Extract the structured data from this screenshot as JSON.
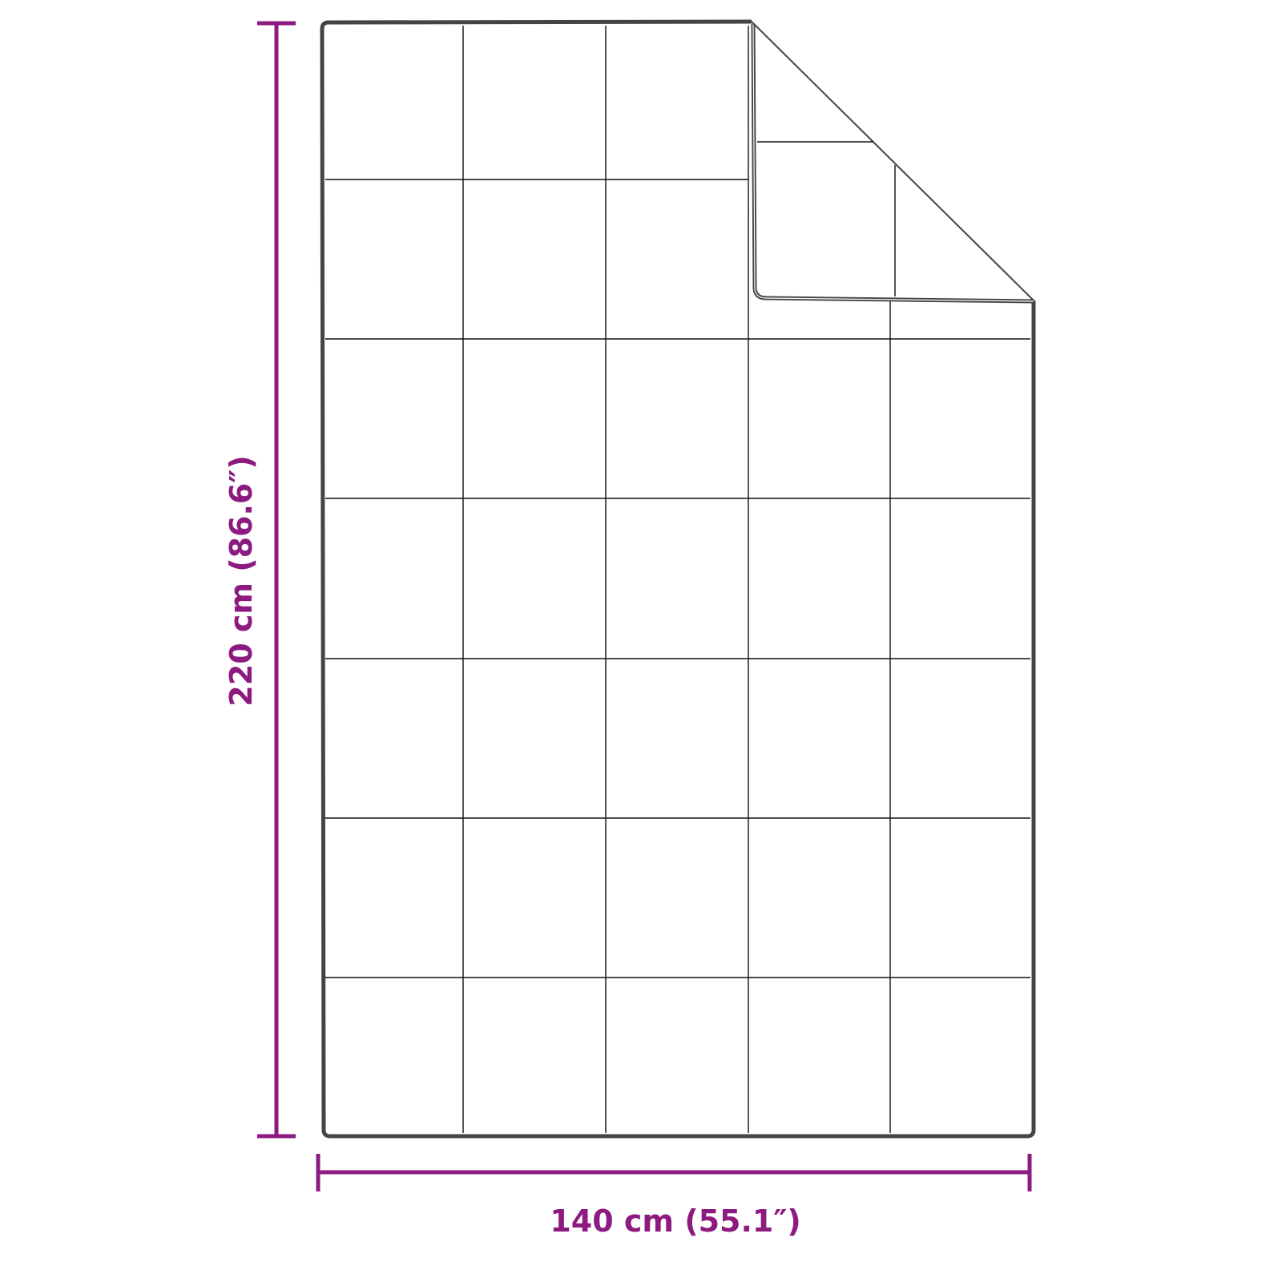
{
  "dimensions": {
    "height_label": "220 cm (86.6″)",
    "width_label": "140 cm (55.1″)"
  },
  "colors": {
    "dimension": "#8c1a80",
    "outline": "#333333"
  },
  "drawing": {
    "subject": "blanket-with-folded-corner",
    "grid_columns": 5,
    "grid_rows": 7
  }
}
